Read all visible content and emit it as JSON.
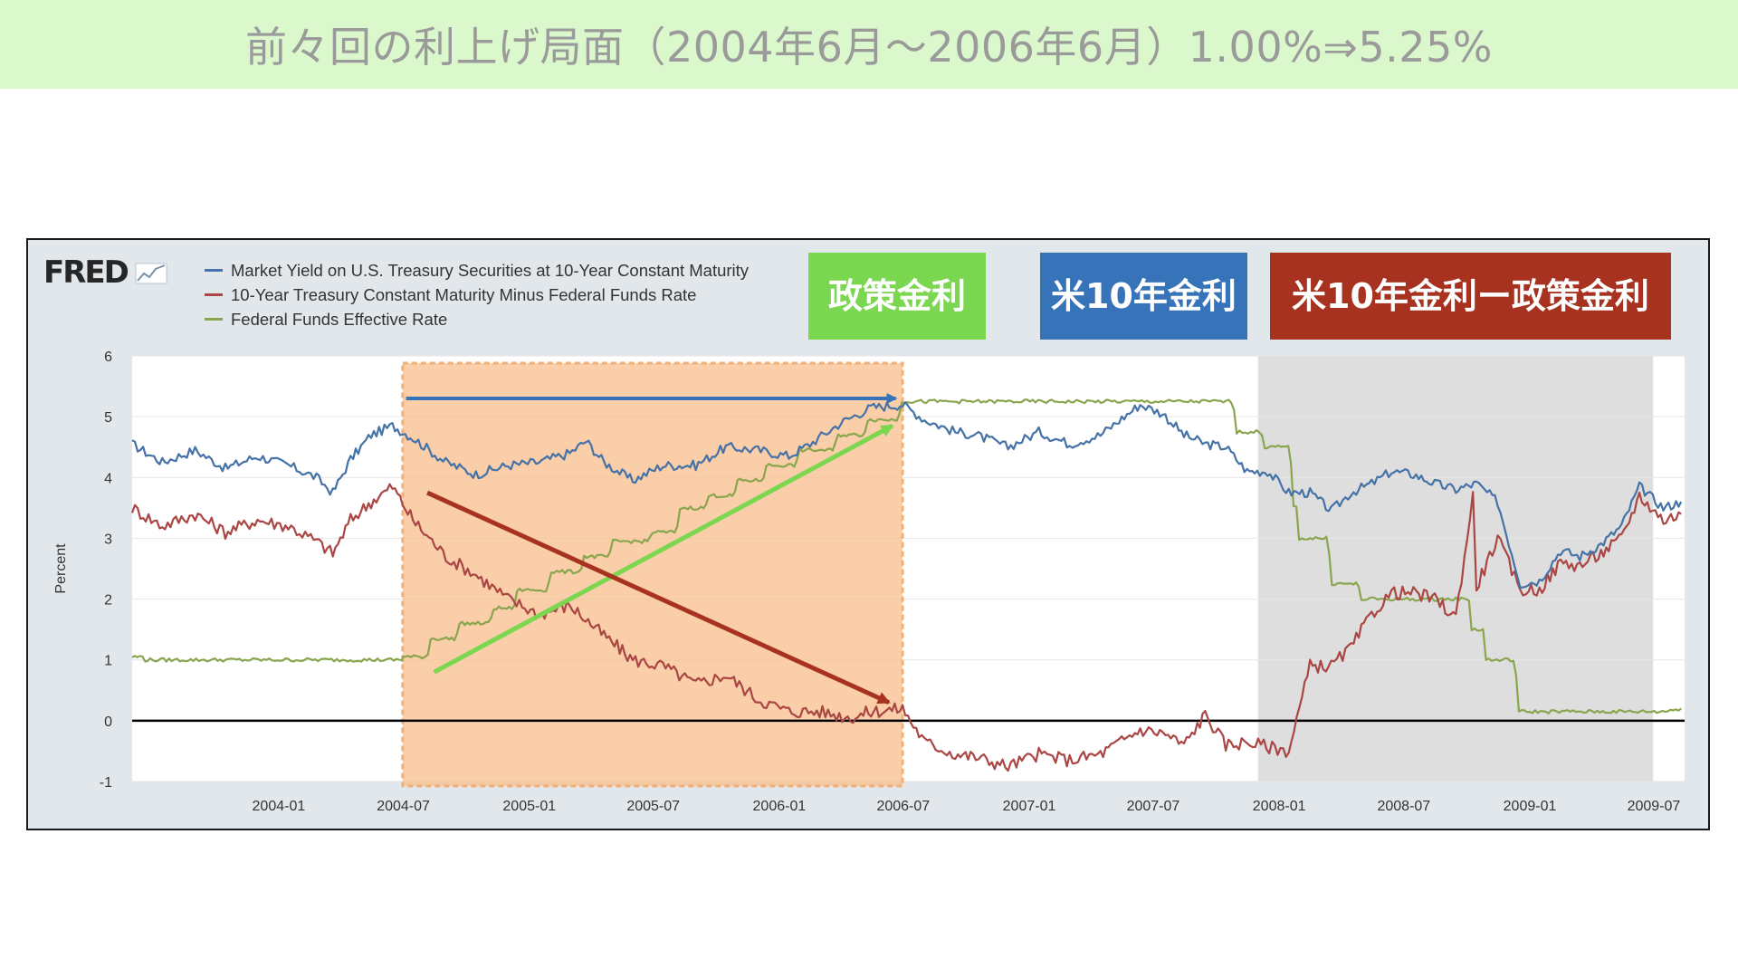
{
  "slide": {
    "title": "前々回の利上げ局面（2004年6月〜2006年6月）1.00%⇒5.25%"
  },
  "logo": {
    "text": "FRED"
  },
  "badges": {
    "policy_rate": "政策金利",
    "us10y": "米10年金利",
    "spread": "米10年金利ー政策金利"
  },
  "colors": {
    "market_yield": "#4572a7",
    "spread": "#aa4643",
    "fed_funds": "#89a54e",
    "highlight": "#f7c08f",
    "recession": "#dedede",
    "badge_policy": "#7bd650",
    "badge_us10": "#3773b8",
    "badge_spread": "#a6321f",
    "arrow_blue": "#3773b8",
    "arrow_green": "#7bd650",
    "arrow_red": "#a6321f"
  },
  "chart_data": {
    "type": "line",
    "ylabel": "Percent",
    "ylim": [
      -1,
      6
    ],
    "yticks": [
      "6",
      "5",
      "4",
      "3",
      "2",
      "1",
      "0",
      "-1"
    ],
    "xlim": [
      "2003-06-01",
      "2009-08-15"
    ],
    "xticks": [
      "2004-01",
      "2004-07",
      "2005-01",
      "2005-07",
      "2006-01",
      "2006-07",
      "2007-01",
      "2007-07",
      "2008-01",
      "2008-07",
      "2009-01",
      "2009-07"
    ],
    "grid": true,
    "legend_position": "top-left",
    "recession_shading": {
      "start": "2007-12-01",
      "end": "2009-06-30"
    },
    "highlight_period": {
      "start": "2004-06-30",
      "end": "2006-06-30"
    },
    "series": [
      {
        "name": "Market Yield on U.S. Treasury Securities at 10-Year Constant Maturity",
        "x": [
          "2003-06-01",
          "2003-07-15",
          "2003-09-01",
          "2003-10-15",
          "2003-12-01",
          "2004-01-15",
          "2004-02-25",
          "2004-03-20",
          "2004-04-15",
          "2004-05-15",
          "2004-06-15",
          "2004-07-15",
          "2004-09-01",
          "2004-10-15",
          "2004-12-01",
          "2005-01-15",
          "2005-03-01",
          "2005-03-25",
          "2005-04-20",
          "2005-06-01",
          "2005-07-15",
          "2005-09-01",
          "2005-10-15",
          "2005-12-01",
          "2006-01-15",
          "2006-02-15",
          "2006-04-01",
          "2006-05-15",
          "2006-06-30",
          "2006-08-01",
          "2006-09-15",
          "2006-10-15",
          "2006-12-01",
          "2007-01-15",
          "2007-03-01",
          "2007-04-15",
          "2007-06-12",
          "2007-07-15",
          "2007-08-15",
          "2007-09-15",
          "2007-10-15",
          "2007-11-15",
          "2007-12-15",
          "2008-01-15",
          "2008-02-15",
          "2008-03-17",
          "2008-04-15",
          "2008-05-15",
          "2008-06-13",
          "2008-07-15",
          "2008-08-15",
          "2008-09-15",
          "2008-10-15",
          "2008-11-15",
          "2008-12-18",
          "2009-01-15",
          "2009-02-15",
          "2009-03-15",
          "2009-04-15",
          "2009-05-15",
          "2009-06-10",
          "2009-07-15",
          "2009-08-10"
        ],
        "y": [
          4.55,
          4.25,
          4.45,
          4.15,
          4.35,
          4.2,
          4.0,
          3.75,
          4.3,
          4.7,
          4.85,
          4.65,
          4.25,
          4.05,
          4.2,
          4.25,
          4.4,
          4.6,
          4.25,
          3.95,
          4.2,
          4.2,
          4.5,
          4.45,
          4.35,
          4.55,
          4.9,
          5.15,
          5.2,
          4.95,
          4.75,
          4.7,
          4.5,
          4.75,
          4.55,
          4.7,
          5.2,
          5.05,
          4.7,
          4.55,
          4.5,
          4.1,
          4.1,
          3.75,
          3.75,
          3.45,
          3.75,
          3.9,
          4.1,
          4.05,
          3.9,
          3.8,
          3.9,
          3.6,
          2.25,
          2.3,
          2.8,
          2.7,
          2.9,
          3.2,
          3.85,
          3.5,
          3.6
        ]
      },
      {
        "name": "10-Year Treasury Constant Maturity Minus Federal Funds Rate",
        "x": [
          "2003-06-01",
          "2003-07-15",
          "2003-09-01",
          "2003-10-15",
          "2003-12-01",
          "2004-01-15",
          "2004-02-25",
          "2004-03-20",
          "2004-04-15",
          "2004-05-15",
          "2004-06-15",
          "2004-07-15",
          "2004-09-01",
          "2004-10-15",
          "2004-12-01",
          "2005-01-15",
          "2005-03-01",
          "2005-04-20",
          "2005-06-01",
          "2005-07-15",
          "2005-09-01",
          "2005-10-15",
          "2005-12-01",
          "2006-01-15",
          "2006-03-01",
          "2006-04-15",
          "2006-05-15",
          "2006-06-30",
          "2006-08-01",
          "2006-09-15",
          "2006-10-15",
          "2006-12-01",
          "2007-01-15",
          "2007-03-01",
          "2007-04-15",
          "2007-06-12",
          "2007-07-15",
          "2007-08-15",
          "2007-09-15",
          "2007-10-15",
          "2007-11-15",
          "2008-01-15",
          "2008-02-15",
          "2008-03-17",
          "2008-04-15",
          "2008-05-15",
          "2008-06-13",
          "2008-07-15",
          "2008-08-15",
          "2008-09-15",
          "2008-10-10",
          "2008-10-15",
          "2008-11-15",
          "2008-12-18",
          "2009-01-15",
          "2009-02-15",
          "2009-03-15",
          "2009-04-15",
          "2009-05-15",
          "2009-06-10",
          "2009-07-15",
          "2009-08-10"
        ],
        "y": [
          3.5,
          3.2,
          3.4,
          3.1,
          3.3,
          3.2,
          2.95,
          2.75,
          3.3,
          3.6,
          3.85,
          3.3,
          2.7,
          2.4,
          2.0,
          1.75,
          1.9,
          1.4,
          1.0,
          0.9,
          0.6,
          0.75,
          0.35,
          0.15,
          0.15,
          0.05,
          0.15,
          0.2,
          -0.35,
          -0.55,
          -0.6,
          -0.75,
          -0.55,
          -0.65,
          -0.55,
          -0.15,
          -0.2,
          -0.4,
          0.1,
          -0.4,
          -0.35,
          -0.5,
          0.9,
          0.9,
          1.2,
          1.75,
          2.1,
          2.1,
          2.0,
          1.7,
          3.7,
          2.2,
          3.0,
          2.15,
          2.15,
          2.6,
          2.55,
          2.75,
          3.0,
          3.7,
          3.3,
          3.4
        ]
      },
      {
        "name": "Federal Funds Effective Rate",
        "x": [
          "2003-06-01",
          "2003-06-20",
          "2003-07-01",
          "2004-06-29",
          "2004-06-30",
          "2004-08-10",
          "2004-09-21",
          "2004-11-10",
          "2004-12-14",
          "2005-02-02",
          "2005-03-22",
          "2005-05-03",
          "2005-06-30",
          "2005-08-09",
          "2005-09-20",
          "2005-11-01",
          "2005-12-13",
          "2006-01-31",
          "2006-03-28",
          "2006-05-10",
          "2006-06-29",
          "2007-09-18",
          "2007-10-31",
          "2007-12-11",
          "2008-01-22",
          "2008-01-30",
          "2008-03-18",
          "2008-04-30",
          "2008-09-15",
          "2008-10-08",
          "2008-10-29",
          "2008-12-16",
          "2009-08-10"
        ],
        "y": [
          1.05,
          1.0,
          1.0,
          1.0,
          1.05,
          1.35,
          1.6,
          1.85,
          2.15,
          2.45,
          2.7,
          2.95,
          3.1,
          3.5,
          3.7,
          3.95,
          4.2,
          4.45,
          4.7,
          4.95,
          5.25,
          5.25,
          4.75,
          4.5,
          3.5,
          3.0,
          2.25,
          2.0,
          2.0,
          1.5,
          1.0,
          0.15,
          0.2
        ]
      }
    ]
  }
}
